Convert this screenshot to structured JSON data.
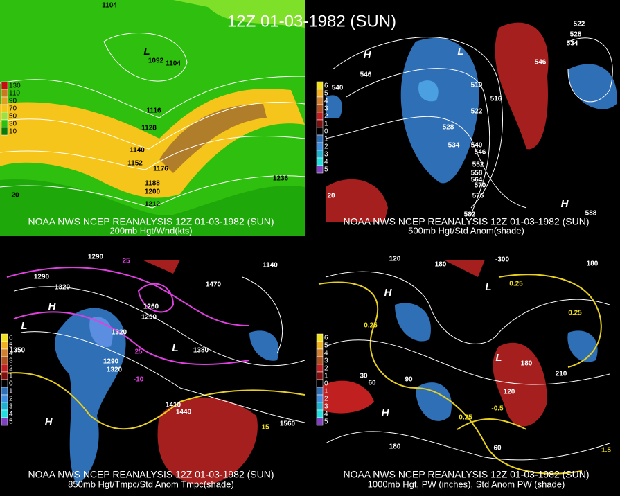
{
  "title": "12Z 01-03-1982 (SUN)",
  "panels": [
    {
      "caption": "NOAA NWS NCEP REANALYSIS 12Z 01-03-1982 (SUN)",
      "subtitle": "200mb Hgt/Wnd(kts)",
      "legend": [
        "130",
        "110",
        "90",
        "70",
        "50",
        "30",
        "10"
      ],
      "labels": [
        "1104",
        "L",
        "1092",
        "1104",
        "1116",
        "1128",
        "1140",
        "1152",
        "1176",
        "1188",
        "1200",
        "1212",
        "1236",
        "20"
      ]
    },
    {
      "caption": "NOAA NWS NCEP REANALYSIS 12Z 01-03-1982 (SUN)",
      "subtitle": "500mb Hgt/Std Anom(shade)",
      "legend": [
        "6",
        "5",
        "4",
        "3",
        "2",
        "1",
        "0",
        "1",
        "2",
        "3",
        "4",
        "5"
      ],
      "labels": [
        "H",
        "546",
        "540",
        "L",
        "510",
        "516",
        "522",
        "528",
        "534",
        "540",
        "546",
        "552",
        "558",
        "564",
        "570",
        "576",
        "582",
        "20",
        "522",
        "528",
        "534",
        "546",
        "H",
        "588"
      ]
    },
    {
      "caption": "NOAA NWS NCEP REANALYSIS 12Z 01-03-1982 (SUN)",
      "subtitle": "850mb Hgt/Tmpc/Std Anom Tmpc(shade)",
      "legend": [
        "6",
        "5",
        "4",
        "3",
        "2",
        "1",
        "0",
        "1",
        "2",
        "3",
        "4",
        "5"
      ],
      "labels": [
        "1290",
        "25",
        "1290",
        "1320",
        "1260",
        "1290",
        "1470",
        "1140",
        "H",
        "L",
        "1320",
        "1350",
        "1290",
        "1320",
        "1380",
        "25",
        "-10",
        "L",
        "1410",
        "1440",
        "H",
        "15",
        "1560"
      ]
    },
    {
      "caption": "NOAA NWS NCEP REANALYSIS 12Z 01-03-1982 (SUN)",
      "subtitle": "1000mb Hgt, PW (inches), Std Anom PW (shade)",
      "legend": [
        "6",
        "5",
        "4",
        "3",
        "2",
        "1",
        "0",
        "1",
        "2",
        "3",
        "4",
        "5"
      ],
      "labels": [
        "120",
        "180",
        "-300",
        "180",
        "0.25",
        "L",
        "H",
        "0.25",
        "0.25",
        "L",
        "180",
        "210",
        "30",
        "60",
        "90",
        "120",
        "H",
        "0.25",
        "-0.5",
        "180",
        "60",
        "1.5"
      ]
    }
  ]
}
